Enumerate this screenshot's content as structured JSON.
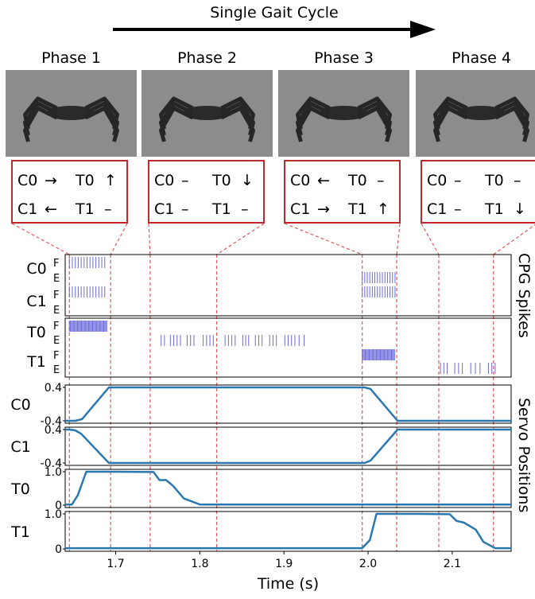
{
  "title": "Single Gait Cycle",
  "phases": [
    {
      "label": "Phase 1",
      "c0": "C0",
      "c0_sym": "→",
      "t0": "T0",
      "t0_sym": "↑",
      "c1": "C1",
      "c1_sym": "←",
      "t1": "T1",
      "t1_sym": "–"
    },
    {
      "label": "Phase 2",
      "c0": "C0",
      "c0_sym": "–",
      "t0": "T0",
      "t0_sym": "↓",
      "c1": "C1",
      "c1_sym": "–",
      "t1": "T1",
      "t1_sym": "–"
    },
    {
      "label": "Phase 3",
      "c0": "C0",
      "c0_sym": "←",
      "t0": "T0",
      "t0_sym": "–",
      "c1": "C1",
      "c1_sym": "→",
      "t1": "T1",
      "t1_sym": "↑"
    },
    {
      "label": "Phase 4",
      "c0": "C0",
      "c0_sym": "–",
      "t0": "T0",
      "t0_sym": "–",
      "c1": "C1",
      "c1_sym": "–",
      "t1": "T1",
      "t1_sym": "↓"
    }
  ],
  "side_labels": {
    "spikes": "CPG Spikes",
    "servo": "Servo Positions"
  },
  "row_labels": {
    "C0": "C0",
    "C1": "C1",
    "T0": "T0",
    "T1": "T1",
    "F": "F",
    "E": "E"
  },
  "colors": {
    "spike": "#6b6bdc",
    "line": "#2a78b0",
    "phase_box": "#c0282d",
    "guide": "#e05a5a",
    "photo_bg": "#8c8c8c"
  },
  "chart_data": {
    "type": "line",
    "xlabel": "Time (s)",
    "xlim": [
      1.64,
      2.17
    ],
    "xticks": [
      1.7,
      1.8,
      1.9,
      2.0,
      2.1
    ],
    "phase_boundaries": [
      1.645,
      1.694,
      1.741,
      1.82,
      1.993,
      2.034,
      2.084,
      2.149
    ],
    "spikes": {
      "C0_F": [
        [
          1.645,
          1.69,
          0.0035
        ]
      ],
      "C1_F": [
        [
          1.993,
          2.032,
          0.003
        ]
      ],
      "C1_E": [
        [
          1.645,
          1.69,
          0.0035
        ],
        [
          1.993,
          2.032,
          0.003
        ]
      ],
      "T0_F": [
        [
          1.645,
          1.69,
          0.0012
        ]
      ],
      "T0_E": [
        [
          1.754,
          1.758,
          0.004
        ],
        [
          1.765,
          1.777,
          0.004
        ],
        [
          1.785,
          1.793,
          0.004
        ],
        [
          1.804,
          1.816,
          0.004
        ],
        [
          1.83,
          1.842,
          0.004
        ],
        [
          1.851,
          1.861,
          0.0035
        ],
        [
          1.866,
          1.877,
          0.004
        ],
        [
          1.883,
          1.893,
          0.004
        ],
        [
          1.901,
          1.913,
          0.004
        ],
        [
          1.918,
          1.924,
          0.006
        ]
      ],
      "T1_F": [
        [
          1.993,
          2.032,
          0.0012
        ]
      ],
      "T1_E": [
        [
          2.086,
          2.094,
          0.004
        ],
        [
          2.103,
          2.112,
          0.0045
        ],
        [
          2.122,
          2.133,
          0.0055
        ],
        [
          2.143,
          2.151,
          0.004
        ]
      ]
    },
    "servo": [
      {
        "name": "C0",
        "yticks": [
          "0.4",
          "-0.4"
        ],
        "ylim": [
          -0.4,
          0.4
        ],
        "x": [
          1.64,
          1.652,
          1.66,
          1.692,
          1.996,
          2.003,
          2.035,
          2.17
        ],
        "y": [
          -0.4,
          -0.4,
          -0.36,
          0.4,
          0.4,
          0.36,
          -0.4,
          -0.4
        ]
      },
      {
        "name": "C1",
        "yticks": [
          "0.4",
          "-0.4"
        ],
        "ylim": [
          -0.4,
          0.4
        ],
        "x": [
          1.64,
          1.645,
          1.652,
          1.659,
          1.692,
          1.996,
          2.003,
          2.035,
          2.17
        ],
        "y": [
          0.4,
          0.4,
          0.38,
          0.3,
          -0.4,
          -0.4,
          -0.34,
          0.4,
          0.4
        ]
      },
      {
        "name": "T0",
        "yticks": [
          "1.0",
          "0"
        ],
        "ylim": [
          0,
          1.0
        ],
        "x": [
          1.64,
          1.648,
          1.655,
          1.665,
          1.7,
          1.745,
          1.752,
          1.76,
          1.768,
          1.781,
          1.8,
          2.17
        ],
        "y": [
          0.02,
          0.02,
          0.3,
          1.0,
          1.0,
          0.99,
          0.75,
          0.75,
          0.58,
          0.2,
          0.02,
          0.02
        ]
      },
      {
        "name": "T1",
        "yticks": [
          "1.0",
          "0"
        ],
        "ylim": [
          0,
          1.0
        ],
        "x": [
          1.64,
          1.993,
          2.002,
          2.01,
          2.06,
          2.097,
          2.105,
          2.114,
          2.128,
          2.137,
          2.151,
          2.17
        ],
        "y": [
          0.02,
          0.02,
          0.25,
          1.0,
          1.0,
          0.99,
          0.8,
          0.75,
          0.55,
          0.2,
          0.02,
          0.02
        ]
      }
    ]
  }
}
